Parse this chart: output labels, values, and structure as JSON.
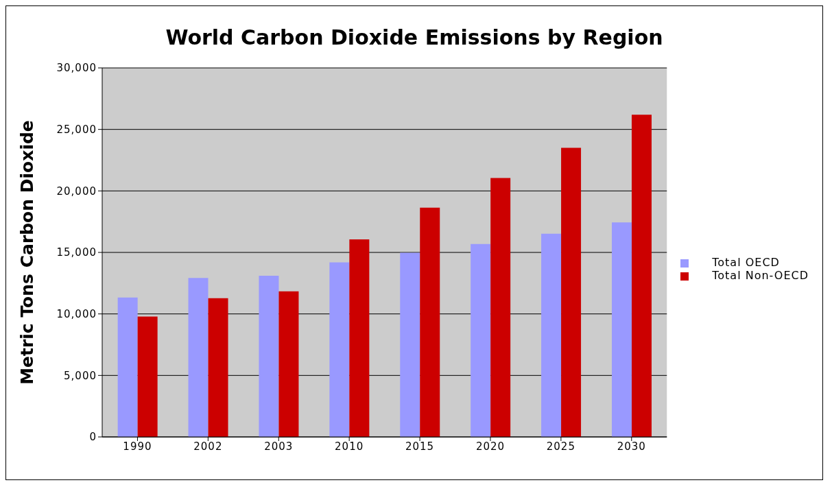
{
  "chart_data": {
    "type": "bar",
    "title": "World Carbon Dioxide Emissions by Region",
    "ylabel": "Metric Tons Carbon Dioxide",
    "categories": [
      "1990",
      "2002",
      "2003",
      "2010",
      "2015",
      "2020",
      "2025",
      "2030"
    ],
    "series": [
      {
        "name": "Total OECD",
        "color": "#9999ff",
        "values": [
          11330,
          12920,
          13110,
          14190,
          14970,
          15690,
          16520,
          17440
        ]
      },
      {
        "name": "Total Non-OECD",
        "color": "#cc0000",
        "values": [
          9780,
          11280,
          11830,
          16060,
          18640,
          21050,
          23500,
          26190
        ]
      }
    ],
    "ylim": [
      0,
      30000
    ],
    "yticks": [
      0,
      {
        "value": 5000,
        "label": "5,000"
      },
      {
        "value": 10000,
        "label": "10,000"
      },
      {
        "value": 15000,
        "label": "15,000"
      },
      {
        "value": 20000,
        "label": "20,000"
      },
      {
        "value": 25000,
        "label": "25,000"
      },
      {
        "value": 30000,
        "label": "30,000"
      }
    ],
    "grid": "y",
    "legend": "right"
  }
}
